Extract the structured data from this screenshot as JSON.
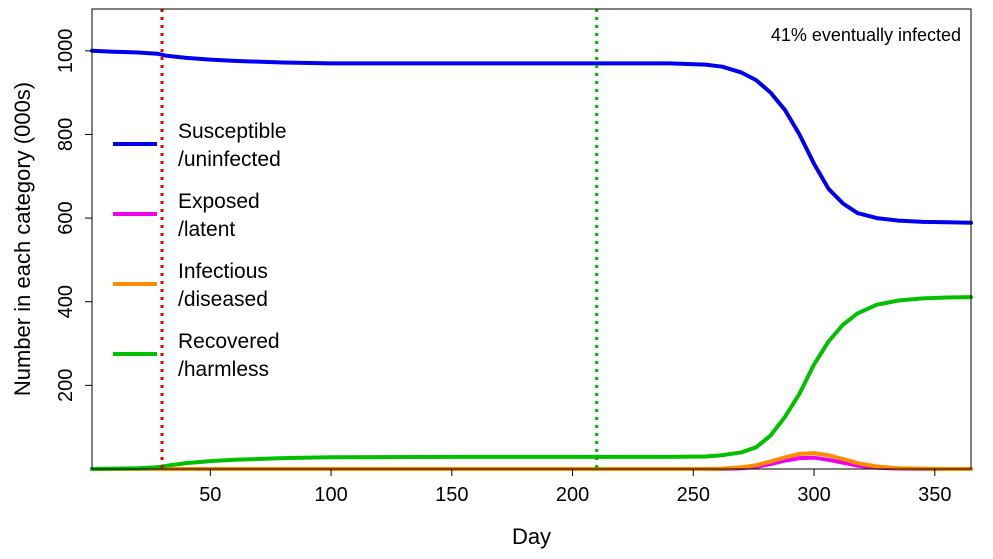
{
  "chart_data": {
    "type": "line",
    "xlabel": "Day",
    "ylabel": "Number in each category (000s)",
    "xlim": [
      1,
      365
    ],
    "ylim": [
      0,
      1100
    ],
    "xticks": [
      50,
      100,
      150,
      200,
      250,
      300,
      350
    ],
    "yticks": [
      200,
      400,
      600,
      800,
      1000
    ],
    "grid": false,
    "legend_position": "left",
    "annotation": "41% eventually infected",
    "vlines": [
      {
        "x": 30,
        "color": "#e00000"
      },
      {
        "x": 210,
        "color": "#00b400"
      }
    ],
    "x": [
      1,
      10,
      20,
      28,
      32,
      40,
      50,
      60,
      80,
      100,
      150,
      200,
      240,
      255,
      262,
      270,
      276,
      282,
      288,
      294,
      300,
      306,
      312,
      318,
      326,
      335,
      345,
      355,
      365
    ],
    "series": [
      {
        "name_lines": [
          "Susceptible",
          "/uninfected"
        ],
        "color": "#0000ee",
        "values": [
          1000,
          998,
          996,
          993,
          988,
          983,
          979,
          976,
          972,
          970,
          970,
          970,
          970,
          967,
          962,
          948,
          930,
          900,
          858,
          800,
          730,
          670,
          635,
          612,
          600,
          594,
          591,
          590,
          589
        ]
      },
      {
        "name_lines": [
          "Exposed",
          "/latent"
        ],
        "color": "#ee00ee",
        "values": [
          0,
          0,
          0,
          0,
          0,
          0,
          0,
          0,
          0,
          0,
          0,
          0,
          0,
          0,
          0,
          2,
          5,
          12,
          20,
          26,
          27,
          22,
          15,
          8,
          3,
          1,
          0,
          0,
          0
        ]
      },
      {
        "name_lines": [
          "Infectious",
          "/diseased"
        ],
        "color": "#ff8c00",
        "values": [
          0,
          0,
          0,
          0,
          0,
          0,
          0,
          0,
          0,
          0,
          0,
          0,
          0,
          0,
          1,
          4,
          9,
          18,
          28,
          36,
          38,
          33,
          24,
          14,
          6,
          2,
          1,
          0,
          0
        ]
      },
      {
        "name_lines": [
          "Recovered",
          "/harmless"
        ],
        "color": "#00c000",
        "values": [
          0,
          1,
          2,
          4,
          8,
          14,
          19,
          22,
          26,
          28,
          29,
          29,
          29,
          30,
          33,
          40,
          52,
          80,
          125,
          180,
          250,
          305,
          345,
          372,
          393,
          403,
          408,
          410,
          411
        ]
      }
    ]
  }
}
